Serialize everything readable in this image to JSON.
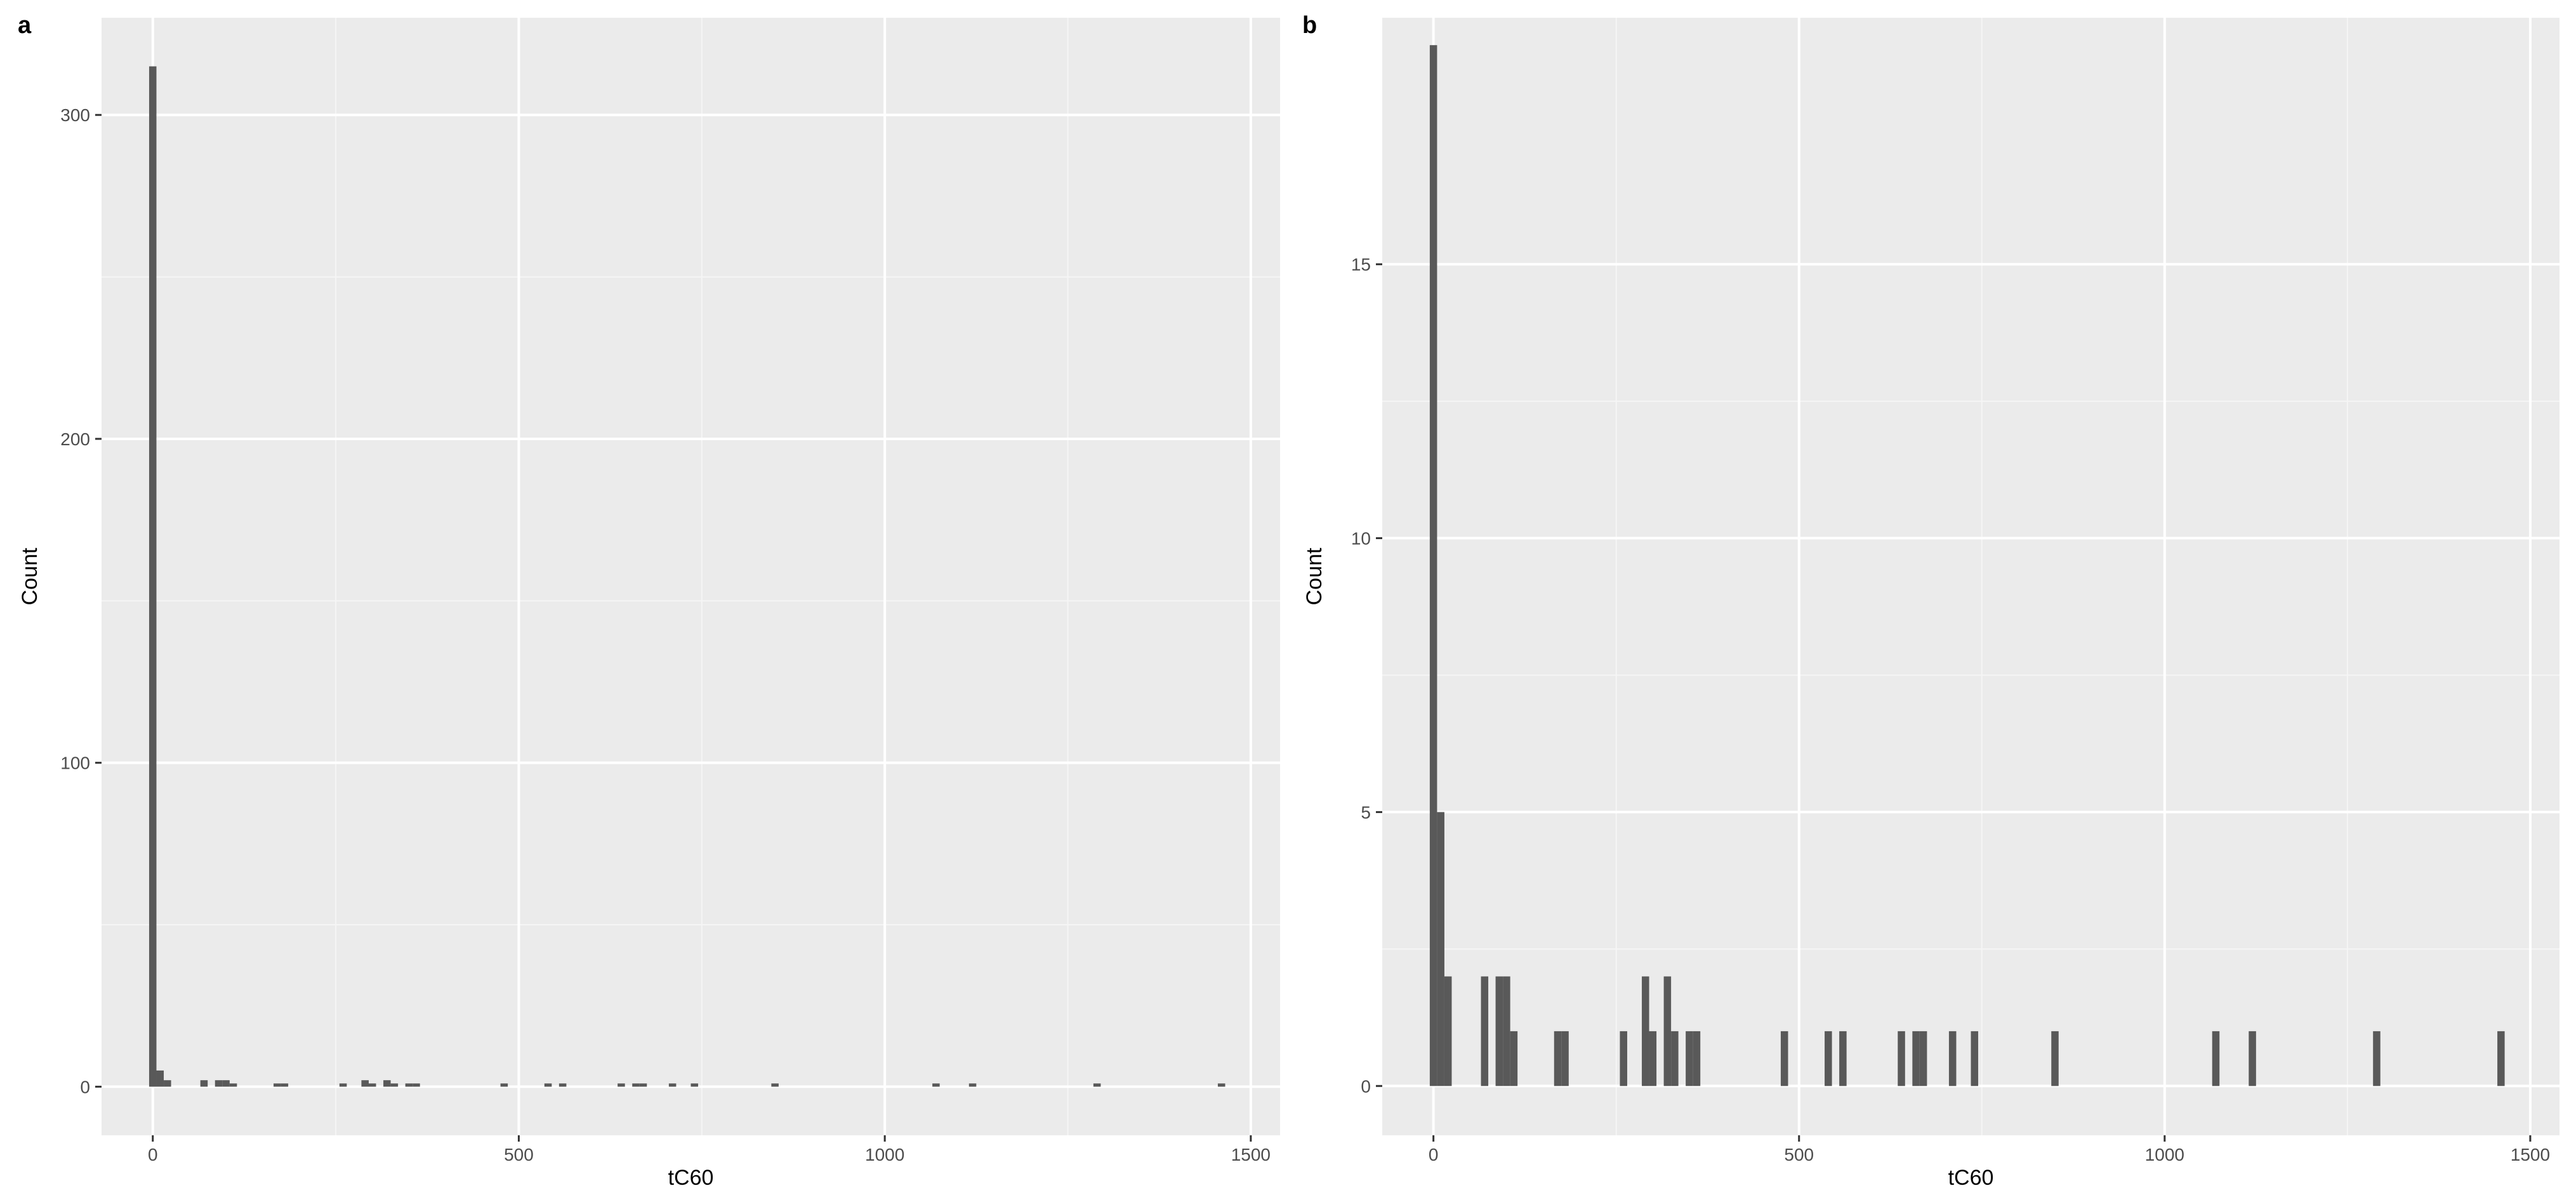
{
  "chart_data": [
    {
      "type": "bar",
      "panel_label": "a",
      "xlabel": "tC60",
      "ylabel": "Count",
      "xlim": [
        -70,
        1540
      ],
      "ylim": [
        -15,
        330
      ],
      "xticks": [
        0,
        500,
        1000,
        1500
      ],
      "yticks": [
        0,
        100,
        200,
        300
      ],
      "grid": true,
      "binwidth": 10,
      "bins": [
        {
          "x": 0,
          "count": 315
        },
        {
          "x": 10,
          "count": 5
        },
        {
          "x": 20,
          "count": 2
        },
        {
          "x": 70,
          "count": 2
        },
        {
          "x": 90,
          "count": 2
        },
        {
          "x": 100,
          "count": 2
        },
        {
          "x": 110,
          "count": 1
        },
        {
          "x": 170,
          "count": 1
        },
        {
          "x": 180,
          "count": 1
        },
        {
          "x": 260,
          "count": 1
        },
        {
          "x": 290,
          "count": 2
        },
        {
          "x": 300,
          "count": 1
        },
        {
          "x": 320,
          "count": 2
        },
        {
          "x": 330,
          "count": 1
        },
        {
          "x": 350,
          "count": 1
        },
        {
          "x": 360,
          "count": 1
        },
        {
          "x": 480,
          "count": 1
        },
        {
          "x": 540,
          "count": 1
        },
        {
          "x": 560,
          "count": 1
        },
        {
          "x": 640,
          "count": 1
        },
        {
          "x": 660,
          "count": 1
        },
        {
          "x": 670,
          "count": 1
        },
        {
          "x": 710,
          "count": 1
        },
        {
          "x": 740,
          "count": 1
        },
        {
          "x": 850,
          "count": 1
        },
        {
          "x": 1070,
          "count": 1
        },
        {
          "x": 1120,
          "count": 1
        },
        {
          "x": 1290,
          "count": 1
        },
        {
          "x": 1460,
          "count": 1
        }
      ]
    },
    {
      "type": "bar",
      "panel_label": "b",
      "xlabel": "tC60",
      "ylabel": "Count",
      "xlim": [
        -70,
        1540
      ],
      "ylim": [
        -0.9,
        19.5
      ],
      "xticks": [
        0,
        500,
        1000,
        1500
      ],
      "yticks": [
        0,
        5,
        10,
        15
      ],
      "grid": true,
      "binwidth": 10,
      "bins": [
        {
          "x": 0,
          "count": 19
        },
        {
          "x": 10,
          "count": 5
        },
        {
          "x": 20,
          "count": 2
        },
        {
          "x": 70,
          "count": 2
        },
        {
          "x": 90,
          "count": 2
        },
        {
          "x": 100,
          "count": 2
        },
        {
          "x": 110,
          "count": 1
        },
        {
          "x": 170,
          "count": 1
        },
        {
          "x": 180,
          "count": 1
        },
        {
          "x": 260,
          "count": 1
        },
        {
          "x": 290,
          "count": 2
        },
        {
          "x": 300,
          "count": 1
        },
        {
          "x": 320,
          "count": 2
        },
        {
          "x": 330,
          "count": 1
        },
        {
          "x": 350,
          "count": 1
        },
        {
          "x": 360,
          "count": 1
        },
        {
          "x": 480,
          "count": 1
        },
        {
          "x": 540,
          "count": 1
        },
        {
          "x": 560,
          "count": 1
        },
        {
          "x": 640,
          "count": 1
        },
        {
          "x": 660,
          "count": 1
        },
        {
          "x": 670,
          "count": 1
        },
        {
          "x": 710,
          "count": 1
        },
        {
          "x": 740,
          "count": 1
        },
        {
          "x": 850,
          "count": 1
        },
        {
          "x": 1070,
          "count": 1
        },
        {
          "x": 1120,
          "count": 1
        },
        {
          "x": 1290,
          "count": 1
        },
        {
          "x": 1460,
          "count": 1
        }
      ]
    }
  ]
}
